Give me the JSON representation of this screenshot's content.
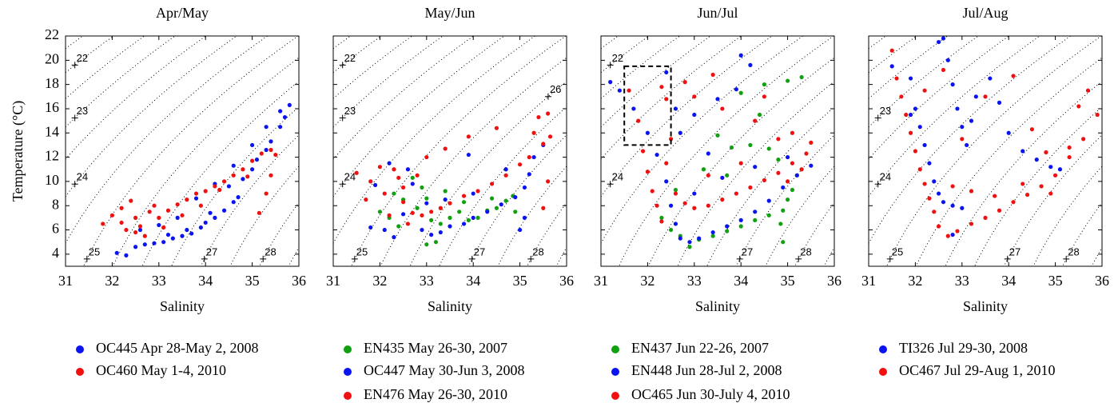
{
  "chart_data": [
    {
      "type": "scatter",
      "title": "Apr/May",
      "xlabel": "Salinity",
      "ylabel": "Temperature (°C)",
      "xlim": [
        31,
        36
      ],
      "ylim": [
        3,
        22
      ],
      "xticks": [
        31,
        32,
        33,
        34,
        35,
        36
      ],
      "yticks": [
        4,
        6,
        8,
        10,
        12,
        14,
        16,
        18,
        20,
        22
      ],
      "ytick_labels": true,
      "isopycnal_levels": [
        21.5,
        22,
        22.5,
        23,
        23.5,
        24,
        24.5,
        25,
        25.5,
        26,
        26.5,
        27,
        27.5,
        28,
        28.5
      ],
      "isopycnal_labels": [
        22,
        23,
        24,
        25,
        27,
        28
      ],
      "series": [
        {
          "name": "OC445 Apr 28-May 2, 2008",
          "color": "#0a14f0",
          "x": [
            32.1,
            32.3,
            32.5,
            32.7,
            32.9,
            33.1,
            33.3,
            33.5,
            33.7,
            33.9,
            34.0,
            34.2,
            34.4,
            34.6,
            34.7,
            34.5,
            34.8,
            35.0,
            35.1,
            35.3,
            35.4,
            35.6,
            35.7,
            35.8,
            35.6,
            35.3,
            35.0,
            34.6,
            34.2,
            33.8,
            33.4,
            33.0,
            32.6,
            33.2,
            33.6,
            34.1
          ],
          "values": [
            4.1,
            3.9,
            4.6,
            4.8,
            4.9,
            5.0,
            5.3,
            5.5,
            5.7,
            6.2,
            6.6,
            7.0,
            7.6,
            8.3,
            8.7,
            9.6,
            10.2,
            11.0,
            11.8,
            12.6,
            13.3,
            14.5,
            15.3,
            16.3,
            15.8,
            14.5,
            13.0,
            11.3,
            9.8,
            8.6,
            7.0,
            6.4,
            6.0,
            5.6,
            6.0,
            7.4
          ]
        },
        {
          "name": "OC460 May 1-4, 2010",
          "color": "#f01010",
          "x": [
            31.8,
            32.0,
            32.2,
            32.3,
            32.4,
            32.5,
            32.6,
            32.7,
            32.8,
            33.0,
            33.2,
            33.4,
            33.6,
            33.8,
            34.0,
            34.2,
            34.4,
            34.6,
            34.8,
            35.0,
            35.2,
            35.4,
            35.5,
            35.4,
            35.3,
            35.15,
            34.9,
            34.3,
            33.9,
            33.5,
            33.1,
            32.9,
            32.2,
            32.5
          ],
          "values": [
            6.5,
            7.2,
            7.8,
            6.0,
            8.4,
            7.0,
            6.3,
            5.5,
            7.5,
            7.0,
            7.6,
            8.1,
            8.5,
            9.0,
            9.2,
            9.6,
            10.0,
            10.5,
            11.0,
            11.7,
            12.3,
            12.6,
            12.2,
            10.5,
            9.0,
            7.4,
            10.4,
            9.3,
            8.0,
            7.2,
            6.2,
            8.0,
            6.6,
            5.8
          ]
        }
      ]
    },
    {
      "type": "scatter",
      "title": "May/Jun",
      "xlabel": "Salinity",
      "xlim": [
        31,
        36
      ],
      "ylim": [
        3,
        22
      ],
      "xticks": [
        31,
        32,
        33,
        34,
        35,
        36
      ],
      "yticks": [
        4,
        6,
        8,
        10,
        12,
        14,
        16,
        18,
        20,
        22
      ],
      "ytick_labels": false,
      "isopycnal_levels": [
        21.5,
        22,
        22.5,
        23,
        23.5,
        24,
        24.5,
        25,
        25.5,
        26,
        26.5,
        27,
        27.5,
        28,
        28.5
      ],
      "isopycnal_labels": [
        22,
        23,
        24,
        25,
        26,
        27,
        28
      ],
      "series": [
        {
          "name": "EN435 May 26-30, 2007",
          "color": "#10a010",
          "x": [
            32.0,
            32.2,
            32.3,
            32.5,
            32.7,
            32.9,
            33.0,
            33.1,
            33.2,
            33.3,
            33.5,
            33.7,
            33.9,
            34.1,
            34.3,
            34.5,
            34.7,
            34.85,
            34.9,
            34.4,
            33.8,
            33.4,
            32.8,
            32.4,
            33.0
          ],
          "values": [
            7.5,
            7.0,
            9.0,
            8.5,
            10.3,
            9.5,
            8.6,
            6.8,
            5.0,
            6.5,
            7.0,
            7.5,
            6.8,
            7.0,
            7.6,
            7.8,
            8.4,
            8.8,
            7.5,
            8.6,
            8.3,
            9.2,
            7.8,
            6.3,
            4.8
          ]
        },
        {
          "name": "OC447 May 30-Jun 3, 2008",
          "color": "#0a14f0",
          "x": [
            31.8,
            31.9,
            32.1,
            32.3,
            32.5,
            32.7,
            32.9,
            33.1,
            33.3,
            33.5,
            33.8,
            34.0,
            34.3,
            34.6,
            34.9,
            35.1,
            35.2,
            35.1,
            35.0,
            35.3,
            35.5,
            34.7,
            34.0,
            33.4,
            33.0,
            32.6,
            32.2,
            33.9
          ],
          "values": [
            6.2,
            9.7,
            6.0,
            5.4,
            7.3,
            9.8,
            6.0,
            5.6,
            5.8,
            6.3,
            6.5,
            7.0,
            7.5,
            8.1,
            8.7,
            9.5,
            10.6,
            7.0,
            6.0,
            12.0,
            13.0,
            11.0,
            9.0,
            8.5,
            8.2,
            11.0,
            11.5,
            12.2
          ]
        },
        {
          "name": "EN476 May 26-30, 2010",
          "color": "#f01010",
          "x": [
            31.5,
            31.7,
            31.8,
            32.0,
            32.1,
            32.2,
            32.3,
            32.4,
            32.5,
            32.6,
            32.7,
            32.9,
            33.1,
            33.3,
            33.5,
            33.8,
            34.1,
            34.4,
            34.7,
            35.0,
            35.2,
            35.5,
            35.65,
            35.3,
            35.4,
            35.6,
            34.5,
            33.9,
            33.4,
            33.0,
            32.5,
            32.8,
            35.6,
            35.5
          ],
          "values": [
            10.7,
            8.5,
            10.0,
            11.2,
            9.0,
            7.2,
            11.0,
            10.3,
            8.3,
            6.5,
            7.4,
            7.2,
            7.5,
            7.8,
            8.2,
            8.8,
            9.2,
            9.8,
            10.5,
            11.4,
            12.0,
            13.1,
            13.7,
            14.0,
            15.3,
            15.6,
            14.4,
            13.7,
            12.7,
            12.0,
            9.5,
            10.5,
            10.0,
            7.8
          ]
        }
      ]
    },
    {
      "type": "scatter",
      "title": "Jun/Jul",
      "xlabel": "Salinity",
      "xlim": [
        31,
        36
      ],
      "ylim": [
        3,
        22
      ],
      "xticks": [
        31,
        32,
        33,
        34,
        35,
        36
      ],
      "yticks": [
        4,
        6,
        8,
        10,
        12,
        14,
        16,
        18,
        20,
        22
      ],
      "ytick_labels": false,
      "isopycnal_levels": [
        21.5,
        22,
        22.5,
        23,
        23.5,
        24,
        24.5,
        25,
        25.5,
        26,
        26.5,
        27,
        27.5,
        28,
        28.5
      ],
      "isopycnal_labels": [
        22,
        24,
        27,
        28
      ],
      "box": {
        "xlim": [
          31.5,
          32.5
        ],
        "ylim": [
          13,
          19.5
        ]
      },
      "series": [
        {
          "name": "EN437 Jun 22-26, 2007",
          "color": "#10a010",
          "x": [
            32.3,
            32.5,
            32.7,
            32.9,
            33.1,
            33.4,
            33.7,
            34.0,
            34.3,
            34.6,
            34.9,
            35.0,
            35.1,
            35.2,
            34.9,
            34.85,
            34.8,
            34.6,
            34.2,
            33.8,
            33.5,
            34.0,
            34.5,
            35.0,
            35.3,
            33.7,
            33.2,
            32.6,
            34.4
          ],
          "values": [
            7.0,
            6.0,
            5.5,
            4.6,
            5.2,
            5.5,
            5.9,
            6.3,
            6.8,
            7.2,
            7.6,
            8.5,
            9.3,
            10.5,
            5.0,
            6.5,
            11.8,
            12.7,
            13.0,
            12.8,
            13.8,
            17.3,
            18.0,
            18.3,
            18.6,
            10.5,
            11.0,
            9.3,
            15.5
          ]
        },
        {
          "name": "EN448 Jun 28-Jul 2, 2008",
          "color": "#0a14f0",
          "x": [
            31.2,
            31.4,
            31.7,
            32.0,
            32.2,
            32.4,
            32.5,
            32.6,
            32.7,
            32.9,
            33.1,
            33.4,
            33.7,
            34.0,
            34.3,
            34.6,
            34.9,
            35.2,
            35.5,
            35.0,
            34.3,
            33.6,
            33.0,
            32.6,
            32.4,
            32.7,
            33.0,
            33.5,
            33.9,
            34.0,
            34.2,
            33.3
          ],
          "values": [
            18.2,
            17.5,
            16.0,
            14.0,
            12.2,
            10.0,
            8.0,
            6.5,
            5.3,
            5.0,
            5.3,
            5.8,
            6.3,
            6.8,
            7.5,
            8.4,
            9.5,
            10.5,
            11.3,
            12.0,
            11.2,
            10.3,
            9.0,
            16.0,
            19.0,
            14.0,
            15.5,
            16.8,
            17.6,
            20.4,
            19.6,
            12.3
          ]
        },
        {
          "name": "OC465 Jun 30-July 4, 2010",
          "color": "#f01010",
          "x": [
            31.6,
            31.8,
            31.9,
            32.0,
            32.1,
            32.2,
            32.3,
            32.4,
            32.5,
            32.4,
            32.3,
            32.6,
            32.8,
            33.0,
            33.3,
            33.6,
            33.9,
            34.2,
            34.5,
            34.8,
            35.1,
            35.4,
            35.5,
            35.3,
            35.1,
            34.8,
            34.3,
            33.6,
            33.0,
            33.4,
            32.8,
            34.0,
            33.3,
            34.5,
            35.0
          ],
          "values": [
            17.5,
            15.0,
            12.5,
            10.8,
            9.2,
            8.0,
            6.7,
            11.5,
            13.5,
            16.8,
            17.8,
            9.0,
            8.2,
            7.8,
            8.0,
            8.5,
            9.0,
            9.5,
            10.1,
            10.7,
            11.5,
            12.3,
            13.2,
            11.0,
            14.0,
            13.5,
            15.0,
            16.0,
            17.0,
            18.8,
            18.2,
            11.5,
            10.5,
            17.0,
            10.0
          ]
        }
      ]
    },
    {
      "type": "scatter",
      "title": "Jul/Aug",
      "xlabel": "Salinity",
      "xlim": [
        31,
        36
      ],
      "ylim": [
        3,
        22
      ],
      "xticks": [
        31,
        32,
        33,
        34,
        35,
        36
      ],
      "yticks": [
        4,
        6,
        8,
        10,
        12,
        14,
        16,
        18,
        20,
        22
      ],
      "ytick_labels": false,
      "isopycnal_levels": [
        21.5,
        22,
        22.5,
        23,
        23.5,
        24,
        24.5,
        25,
        25.5,
        26,
        26.5,
        27,
        27.5,
        28,
        28.5
      ],
      "isopycnal_labels": [
        23,
        24,
        25,
        27,
        28
      ],
      "series": [
        {
          "name": "TI326 Jul 29-30, 2008",
          "color": "#0a14f0",
          "x": [
            31.9,
            32.0,
            32.1,
            32.2,
            32.3,
            32.4,
            32.5,
            32.6,
            32.8,
            33.0,
            32.6,
            32.7,
            32.8,
            32.9,
            33.0,
            33.1,
            33.2,
            33.3,
            33.6,
            33.8,
            34.0,
            34.3,
            34.6,
            34.9,
            35.1,
            32.5,
            31.5,
            31.9,
            32.8
          ],
          "values": [
            18.5,
            16.0,
            14.5,
            13.0,
            11.5,
            10.0,
            9.0,
            8.3,
            8.0,
            7.8,
            21.8,
            20.0,
            18.0,
            16.0,
            14.5,
            13.0,
            15.0,
            17.0,
            18.5,
            16.5,
            14.0,
            12.5,
            11.8,
            11.2,
            11.0,
            21.5,
            19.5,
            15.5,
            5.6
          ]
        },
        {
          "name": "OC467 Jul 29-Aug 1, 2010",
          "color": "#f01010",
          "x": [
            31.5,
            31.6,
            31.7,
            31.8,
            31.9,
            32.0,
            32.1,
            32.2,
            32.3,
            32.4,
            32.5,
            32.7,
            32.9,
            33.2,
            33.5,
            33.8,
            34.1,
            34.4,
            34.7,
            34.9,
            35.0,
            35.3,
            35.6,
            35.9,
            35.5,
            35.3,
            34.8,
            34.3,
            33.7,
            33.2,
            32.8,
            33.0,
            33.5,
            34.1,
            32.6,
            32.2,
            34.5,
            35.7
          ],
          "values": [
            20.8,
            18.5,
            17.0,
            15.5,
            14.0,
            12.5,
            11.0,
            9.8,
            8.6,
            7.5,
            6.3,
            5.5,
            5.9,
            6.5,
            7.0,
            7.6,
            8.3,
            8.9,
            9.6,
            9.0,
            10.5,
            12.0,
            13.5,
            15.5,
            16.2,
            12.8,
            12.4,
            9.8,
            8.8,
            9.2,
            9.6,
            13.5,
            17.0,
            18.7,
            19.2,
            17.5,
            14.3,
            17.5
          ]
        }
      ]
    }
  ]
}
